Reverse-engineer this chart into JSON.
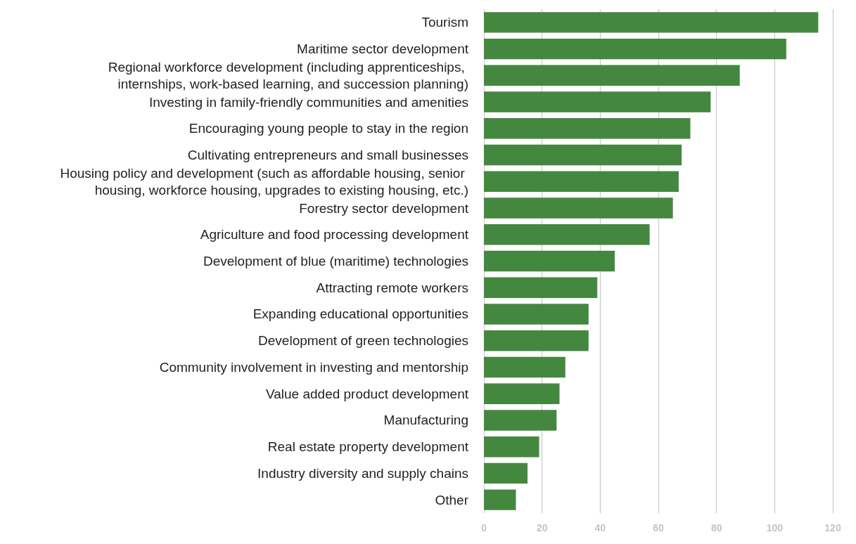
{
  "chart_data": {
    "type": "bar",
    "orientation": "horizontal",
    "categories": [
      "Tourism",
      "Maritime sector development",
      "Regional workforce development (including apprenticeships, internships, work-based learning, and succession planning)",
      "Investing in family-friendly communities and amenities",
      "Encouraging young people to stay in the region",
      "Cultivating entrepreneurs and small businesses",
      "Housing policy and development (such as affordable housing, senior housing, workforce housing, upgrades to existing housing, etc.)",
      "Forestry sector development",
      "Agriculture and food processing development",
      "Development of blue (maritime) technologies",
      "Attracting remote workers",
      "Expanding educational opportunities",
      "Development of green technologies",
      "Community involvement in investing and mentorship",
      "Value added product development",
      "Manufacturing",
      "Real estate property development",
      "Industry diversity and supply chains",
      "Other"
    ],
    "values": [
      115,
      104,
      88,
      78,
      71,
      68,
      67,
      65,
      57,
      45,
      39,
      36,
      36,
      28,
      26,
      25,
      19,
      15,
      11
    ],
    "color": "#448840",
    "xlim": [
      0,
      120
    ],
    "xticks": [
      0,
      20,
      40,
      60,
      80,
      100,
      120
    ],
    "grid": "x"
  }
}
